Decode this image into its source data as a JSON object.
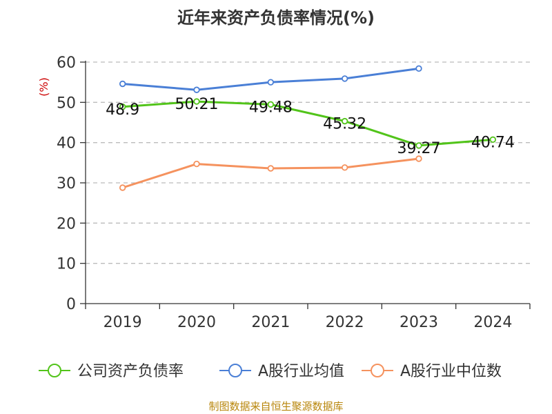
{
  "chart_data": {
    "type": "line",
    "title": "近年来资产负债率情况(%)",
    "ylabel": "(%)",
    "xlabel": "",
    "categories": [
      "2019",
      "2020",
      "2021",
      "2022",
      "2023",
      "2024"
    ],
    "ylim": [
      0,
      60
    ],
    "yticks": [
      0,
      10,
      20,
      30,
      40,
      50,
      60
    ],
    "grid": true,
    "legend_position": "bottom",
    "series": [
      {
        "name": "公司资产负债率",
        "color": "#52c41a",
        "values": [
          48.9,
          50.21,
          49.48,
          45.32,
          39.27,
          40.74
        ],
        "labels": [
          "48.9",
          "50.21",
          "49.48",
          "45.32",
          "39.27",
          "40.74"
        ]
      },
      {
        "name": "A股行业均值",
        "color": "#4a7fd6",
        "values": [
          54.6,
          53.1,
          55.0,
          55.9,
          58.4,
          null
        ]
      },
      {
        "name": "A股行业中位数",
        "color": "#f5925e",
        "values": [
          28.8,
          34.7,
          33.6,
          33.8,
          36.0,
          null
        ]
      }
    ]
  },
  "footer": {
    "source": "制图数据来自恒生聚源数据库"
  }
}
